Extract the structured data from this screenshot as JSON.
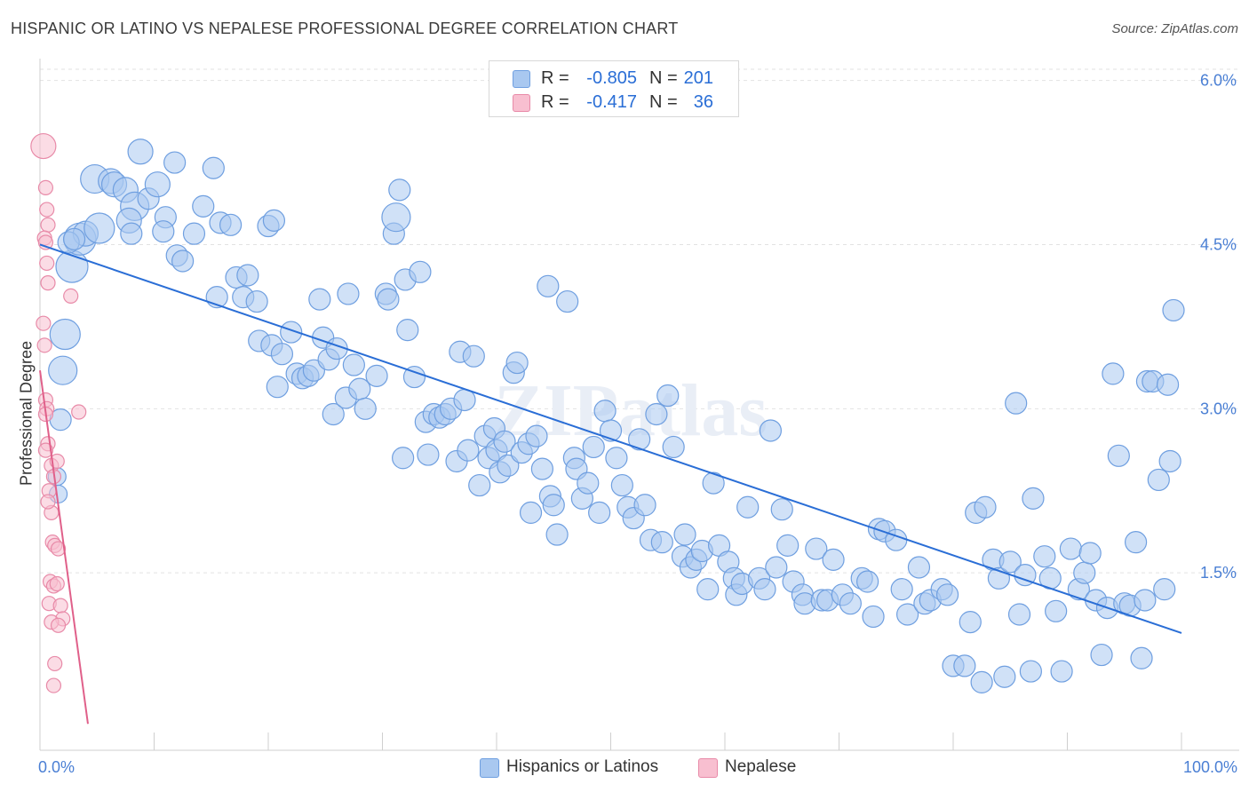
{
  "header": {
    "title": "HISPANIC OR LATINO VS NEPALESE PROFESSIONAL DEGREE CORRELATION CHART",
    "source": "Source: ZipAtlas.com"
  },
  "watermark": "ZIPatlas",
  "legend": {
    "rows": [
      {
        "r_label": "R =",
        "r_value": "-0.805",
        "n_label": "N =",
        "n_value": "201",
        "color": "#a9c8f0",
        "border": "#6f9fe0"
      },
      {
        "r_label": "R =",
        "r_value": "-0.417",
        "n_label": "N =",
        "n_value": "36",
        "color": "#f8bfd0",
        "border": "#e88aa8"
      }
    ]
  },
  "bottom_legend": {
    "items": [
      {
        "label": "Hispanics or Latinos",
        "color": "#a9c8f0",
        "border": "#6f9fe0"
      },
      {
        "label": "Nepalese",
        "color": "#f8bfd0",
        "border": "#e88aa8"
      }
    ]
  },
  "chart_data": {
    "type": "scatter",
    "title": "HISPANIC OR LATINO VS NEPALESE PROFESSIONAL DEGREE CORRELATION CHART",
    "ylabel": "Professional Degree",
    "xlabel": "",
    "xlim": [
      0,
      100
    ],
    "ylim": [
      0,
      6.2
    ],
    "x_tick_labels": [
      "0.0%",
      "100.0%"
    ],
    "y_ticks": [
      1.5,
      3.0,
      4.5,
      6.0
    ],
    "y_tick_labels": [
      "1.5%",
      "3.0%",
      "4.5%",
      "6.0%"
    ],
    "grid": true,
    "legend_position": "bottom-center",
    "series": [
      {
        "name": "Hispanics or Latinos",
        "color": "#a9c8f0",
        "stroke": "#6f9fe0",
        "trend": {
          "x": [
            0,
            100
          ],
          "y": [
            4.5,
            0.95
          ],
          "color": "#2a6ed6"
        },
        "points": [
          [
            1.8,
            2.9,
            12
          ],
          [
            2.0,
            3.35,
            16
          ],
          [
            2.2,
            3.68,
            17
          ],
          [
            2.8,
            4.3,
            18
          ],
          [
            3.5,
            4.55,
            18
          ],
          [
            4.0,
            4.6,
            14
          ],
          [
            5.2,
            4.65,
            17
          ],
          [
            4.8,
            5.1,
            16
          ],
          [
            6.2,
            5.08,
            14
          ],
          [
            6.5,
            5.05,
            14
          ],
          [
            7.5,
            5.0,
            14
          ],
          [
            8.3,
            4.85,
            16
          ],
          [
            8.8,
            5.35,
            14
          ],
          [
            7.8,
            4.72,
            14
          ],
          [
            9.5,
            4.92,
            12
          ],
          [
            10.3,
            5.05,
            14
          ],
          [
            11.0,
            4.75,
            12
          ],
          [
            10.8,
            4.62,
            12
          ],
          [
            11.8,
            5.25,
            12
          ],
          [
            12.0,
            4.4,
            12
          ],
          [
            12.5,
            4.35,
            12
          ],
          [
            13.5,
            4.6,
            12
          ],
          [
            14.3,
            4.85,
            12
          ],
          [
            15.2,
            5.2,
            12
          ],
          [
            15.5,
            4.02,
            12
          ],
          [
            15.8,
            4.7,
            12
          ],
          [
            16.7,
            4.68,
            12
          ],
          [
            17.2,
            4.2,
            12
          ],
          [
            17.8,
            4.02,
            12
          ],
          [
            18.2,
            4.22,
            12
          ],
          [
            19.0,
            3.98,
            12
          ],
          [
            19.2,
            3.62,
            12
          ],
          [
            20.0,
            4.67,
            12
          ],
          [
            20.5,
            4.72,
            12
          ],
          [
            20.3,
            3.58,
            12
          ],
          [
            20.8,
            3.2,
            12
          ],
          [
            21.2,
            3.5,
            12
          ],
          [
            22.0,
            3.7,
            12
          ],
          [
            22.5,
            3.32,
            12
          ],
          [
            23.0,
            3.28,
            12
          ],
          [
            23.5,
            3.3,
            12
          ],
          [
            24.0,
            3.35,
            12
          ],
          [
            24.5,
            4.0,
            12
          ],
          [
            24.8,
            3.65,
            12
          ],
          [
            25.3,
            3.45,
            12
          ],
          [
            25.7,
            2.95,
            12
          ],
          [
            26.0,
            3.55,
            12
          ],
          [
            26.8,
            3.1,
            12
          ],
          [
            27.0,
            4.05,
            12
          ],
          [
            27.5,
            3.4,
            12
          ],
          [
            28.0,
            3.18,
            12
          ],
          [
            28.5,
            3.0,
            12
          ],
          [
            29.5,
            3.3,
            12
          ],
          [
            30.3,
            4.05,
            12
          ],
          [
            30.5,
            4.0,
            12
          ],
          [
            31.0,
            4.6,
            12
          ],
          [
            31.2,
            4.75,
            16
          ],
          [
            31.5,
            5.0,
            12
          ],
          [
            32.0,
            4.18,
            12
          ],
          [
            32.2,
            3.72,
            12
          ],
          [
            31.8,
            2.55,
            12
          ],
          [
            32.8,
            3.29,
            12
          ],
          [
            33.3,
            4.25,
            12
          ],
          [
            33.8,
            2.88,
            12
          ],
          [
            34.0,
            2.58,
            12
          ],
          [
            34.5,
            2.95,
            12
          ],
          [
            35.0,
            2.92,
            12
          ],
          [
            35.5,
            2.95,
            12
          ],
          [
            36.0,
            3.0,
            12
          ],
          [
            36.5,
            2.52,
            12
          ],
          [
            36.8,
            3.52,
            12
          ],
          [
            37.2,
            3.08,
            12
          ],
          [
            37.5,
            2.62,
            12
          ],
          [
            38.0,
            3.48,
            12
          ],
          [
            38.5,
            2.3,
            12
          ],
          [
            39.0,
            2.75,
            12
          ],
          [
            39.3,
            2.55,
            12
          ],
          [
            39.8,
            2.82,
            12
          ],
          [
            40.0,
            2.62,
            12
          ],
          [
            40.3,
            2.42,
            12
          ],
          [
            40.7,
            2.7,
            12
          ],
          [
            41.0,
            2.48,
            12
          ],
          [
            41.5,
            3.33,
            12
          ],
          [
            41.8,
            3.42,
            12
          ],
          [
            42.2,
            2.6,
            12
          ],
          [
            42.8,
            2.68,
            12
          ],
          [
            43.0,
            2.05,
            12
          ],
          [
            43.5,
            2.75,
            12
          ],
          [
            44.0,
            2.45,
            12
          ],
          [
            44.5,
            4.12,
            12
          ],
          [
            44.7,
            2.2,
            12
          ],
          [
            45.0,
            2.12,
            12
          ],
          [
            45.3,
            1.85,
            12
          ],
          [
            46.2,
            3.98,
            12
          ],
          [
            46.8,
            2.55,
            12
          ],
          [
            47.0,
            2.45,
            12
          ],
          [
            47.5,
            2.18,
            12
          ],
          [
            48.0,
            2.32,
            12
          ],
          [
            48.5,
            2.65,
            12
          ],
          [
            49.0,
            2.05,
            12
          ],
          [
            49.5,
            2.98,
            12
          ],
          [
            50.0,
            2.8,
            12
          ],
          [
            50.5,
            2.55,
            12
          ],
          [
            51.0,
            2.3,
            12
          ],
          [
            51.5,
            2.1,
            12
          ],
          [
            52.0,
            2.0,
            12
          ],
          [
            52.5,
            2.72,
            12
          ],
          [
            53.0,
            2.12,
            12
          ],
          [
            53.5,
            1.8,
            12
          ],
          [
            54.0,
            2.95,
            12
          ],
          [
            54.5,
            1.78,
            12
          ],
          [
            55.0,
            3.12,
            12
          ],
          [
            55.5,
            2.65,
            12
          ],
          [
            56.3,
            1.65,
            12
          ],
          [
            56.5,
            1.85,
            12
          ],
          [
            57.0,
            1.55,
            12
          ],
          [
            57.5,
            1.62,
            12
          ],
          [
            58.0,
            1.7,
            12
          ],
          [
            58.5,
            1.35,
            12
          ],
          [
            59.0,
            2.32,
            12
          ],
          [
            59.5,
            1.75,
            12
          ],
          [
            60.3,
            1.6,
            12
          ],
          [
            60.8,
            1.45,
            12
          ],
          [
            61.0,
            1.3,
            12
          ],
          [
            61.5,
            1.4,
            12
          ],
          [
            62.0,
            2.1,
            12
          ],
          [
            63.0,
            1.45,
            12
          ],
          [
            63.5,
            1.35,
            12
          ],
          [
            64.0,
            2.8,
            12
          ],
          [
            64.5,
            1.55,
            12
          ],
          [
            65.0,
            2.08,
            12
          ],
          [
            65.5,
            1.75,
            12
          ],
          [
            66.0,
            1.42,
            12
          ],
          [
            66.8,
            1.3,
            12
          ],
          [
            67.0,
            1.22,
            12
          ],
          [
            68.0,
            1.72,
            12
          ],
          [
            68.5,
            1.25,
            12
          ],
          [
            69.0,
            1.25,
            12
          ],
          [
            69.5,
            1.62,
            12
          ],
          [
            70.3,
            1.3,
            12
          ],
          [
            71.0,
            1.22,
            12
          ],
          [
            72.0,
            1.45,
            12
          ],
          [
            72.5,
            1.42,
            12
          ],
          [
            73.0,
            1.1,
            12
          ],
          [
            73.5,
            1.9,
            12
          ],
          [
            74.0,
            1.88,
            12
          ],
          [
            75.0,
            1.8,
            12
          ],
          [
            75.5,
            1.35,
            12
          ],
          [
            76.0,
            1.12,
            12
          ],
          [
            77.0,
            1.55,
            12
          ],
          [
            77.5,
            1.22,
            12
          ],
          [
            78.0,
            1.25,
            12
          ],
          [
            79.0,
            1.35,
            12
          ],
          [
            79.5,
            1.3,
            12
          ],
          [
            80.0,
            0.65,
            12
          ],
          [
            81.0,
            0.65,
            12
          ],
          [
            81.5,
            1.05,
            12
          ],
          [
            82.0,
            2.05,
            12
          ],
          [
            82.5,
            0.5,
            12
          ],
          [
            82.8,
            2.1,
            12
          ],
          [
            83.5,
            1.62,
            12
          ],
          [
            84.0,
            1.45,
            12
          ],
          [
            84.5,
            0.55,
            12
          ],
          [
            85.0,
            1.6,
            12
          ],
          [
            85.5,
            3.05,
            12
          ],
          [
            85.8,
            1.12,
            12
          ],
          [
            86.3,
            1.48,
            12
          ],
          [
            86.8,
            0.6,
            12
          ],
          [
            87.0,
            2.18,
            12
          ],
          [
            88.0,
            1.65,
            12
          ],
          [
            88.5,
            1.45,
            12
          ],
          [
            89.0,
            1.15,
            12
          ],
          [
            89.5,
            0.6,
            12
          ],
          [
            90.3,
            1.72,
            12
          ],
          [
            91.0,
            1.35,
            12
          ],
          [
            91.5,
            1.5,
            12
          ],
          [
            92.0,
            1.68,
            12
          ],
          [
            92.5,
            1.25,
            12
          ],
          [
            93.0,
            0.75,
            12
          ],
          [
            93.5,
            1.18,
            12
          ],
          [
            94.0,
            3.32,
            12
          ],
          [
            94.5,
            2.57,
            12
          ],
          [
            95.0,
            1.22,
            12
          ],
          [
            95.5,
            1.2,
            12
          ],
          [
            96.0,
            1.78,
            12
          ],
          [
            96.5,
            0.72,
            12
          ],
          [
            96.8,
            1.25,
            12
          ],
          [
            97.0,
            3.25,
            12
          ],
          [
            97.5,
            3.25,
            12
          ],
          [
            98.0,
            2.35,
            12
          ],
          [
            98.5,
            1.35,
            12
          ],
          [
            99.0,
            2.52,
            12
          ],
          [
            99.3,
            3.9,
            12
          ],
          [
            98.8,
            3.22,
            12
          ],
          [
            1.5,
            2.38,
            10
          ],
          [
            1.6,
            2.22,
            10
          ],
          [
            2.5,
            4.52,
            12
          ],
          [
            3.0,
            4.55,
            12
          ],
          [
            8.0,
            4.6,
            12
          ]
        ]
      },
      {
        "name": "Nepalese",
        "color": "#f8bfd0",
        "stroke": "#e88aa8",
        "trend": {
          "x": [
            0,
            4.2
          ],
          "y": [
            3.35,
            0.12
          ],
          "color": "#e0608a"
        },
        "points": [
          [
            0.3,
            5.4,
            14
          ],
          [
            0.5,
            5.02,
            8
          ],
          [
            0.6,
            4.82,
            8
          ],
          [
            0.7,
            4.68,
            8
          ],
          [
            0.4,
            4.56,
            8
          ],
          [
            0.5,
            4.52,
            8
          ],
          [
            0.6,
            4.33,
            8
          ],
          [
            0.7,
            4.15,
            8
          ],
          [
            2.7,
            4.03,
            8
          ],
          [
            0.3,
            3.78,
            8
          ],
          [
            0.4,
            3.58,
            8
          ],
          [
            0.5,
            3.08,
            8
          ],
          [
            0.6,
            3.0,
            8
          ],
          [
            3.4,
            2.97,
            8
          ],
          [
            0.7,
            2.68,
            8
          ],
          [
            0.5,
            2.62,
            8
          ],
          [
            1.0,
            2.48,
            8
          ],
          [
            1.2,
            2.38,
            8
          ],
          [
            1.5,
            2.52,
            8
          ],
          [
            0.8,
            2.25,
            8
          ],
          [
            1.0,
            2.05,
            8
          ],
          [
            1.1,
            1.78,
            8
          ],
          [
            1.3,
            1.75,
            8
          ],
          [
            0.9,
            1.42,
            8
          ],
          [
            1.2,
            1.38,
            8
          ],
          [
            1.5,
            1.4,
            8
          ],
          [
            0.8,
            1.22,
            8
          ],
          [
            1.8,
            1.2,
            8
          ],
          [
            2.0,
            1.08,
            8
          ],
          [
            1.0,
            1.05,
            8
          ],
          [
            1.6,
            1.02,
            8
          ],
          [
            1.3,
            0.67,
            8
          ],
          [
            1.2,
            0.47,
            8
          ],
          [
            0.5,
            2.95,
            8
          ],
          [
            0.7,
            2.15,
            8
          ],
          [
            1.6,
            1.72,
            8
          ]
        ]
      }
    ]
  }
}
